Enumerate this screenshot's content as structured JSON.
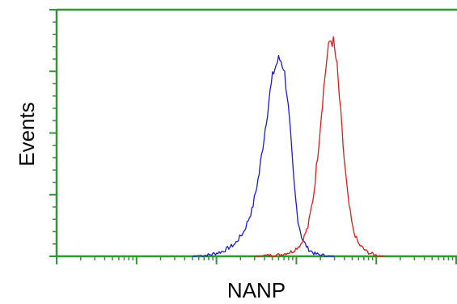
{
  "chart_data": {
    "type": "line",
    "title": "",
    "xlabel": "NANP",
    "ylabel": "Events",
    "x_scale": "log",
    "xlim": [
      1,
      100000
    ],
    "ylim": [
      0,
      100
    ],
    "grid": false,
    "legend": "none",
    "axis_color": "#2e9a2e",
    "series": [
      {
        "color": "#1a1ad6",
        "points": [
          [
            50,
            0
          ],
          [
            80,
            0.5
          ],
          [
            120,
            2
          ],
          [
            170,
            5
          ],
          [
            220,
            10
          ],
          [
            280,
            19
          ],
          [
            340,
            33
          ],
          [
            400,
            50
          ],
          [
            460,
            65
          ],
          [
            520,
            75
          ],
          [
            580,
            79
          ],
          [
            630,
            80
          ],
          [
            690,
            77
          ],
          [
            760,
            67
          ],
          [
            840,
            50
          ],
          [
            930,
            30
          ],
          [
            1040,
            15
          ],
          [
            1180,
            7
          ],
          [
            1400,
            3
          ],
          [
            1700,
            1
          ],
          [
            2200,
            0.3
          ],
          [
            3000,
            0
          ]
        ]
      },
      {
        "color": "#e01a1a",
        "points": [
          [
            300,
            0
          ],
          [
            600,
            0.5
          ],
          [
            900,
            2
          ],
          [
            1150,
            5
          ],
          [
            1400,
            12
          ],
          [
            1650,
            25
          ],
          [
            1900,
            45
          ],
          [
            2150,
            65
          ],
          [
            2400,
            80
          ],
          [
            2650,
            88
          ],
          [
            2900,
            87
          ],
          [
            3200,
            78
          ],
          [
            3550,
            60
          ],
          [
            3950,
            40
          ],
          [
            4450,
            23
          ],
          [
            5100,
            11
          ],
          [
            6000,
            5
          ],
          [
            7500,
            2
          ],
          [
            9500,
            0.5
          ],
          [
            13000,
            0
          ]
        ]
      }
    ]
  }
}
